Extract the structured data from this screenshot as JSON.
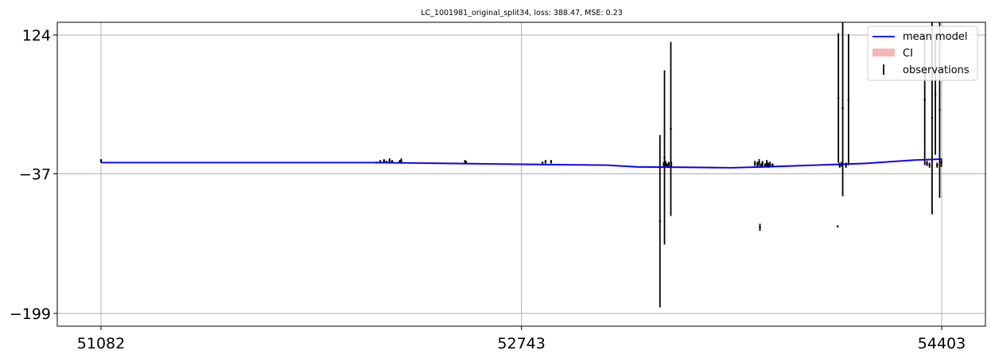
{
  "chart_data": {
    "type": "line",
    "title": "LC_1001981_original_split34, loss: 388.47, MSE: 0.23",
    "xlabel": "",
    "ylabel": "",
    "xlim": [
      51082,
      54403
    ],
    "ylim": [
      -199,
      124
    ],
    "x_ticks": [
      "51082",
      "52743",
      "54403"
    ],
    "y_ticks": [
      "124",
      "−37",
      "−199"
    ],
    "grid": true,
    "legend_position": "top-right",
    "legend": [
      "mean model",
      "CI",
      "observations"
    ],
    "colors": {
      "mean_model": "#0000ff",
      "ci": "#f7b6b6",
      "observations": "#000000",
      "grid": "#b0b0b0"
    },
    "mean_model": {
      "x": [
        51082,
        52167,
        52467,
        52767,
        53082,
        53200,
        53400,
        53570,
        53700,
        53800,
        53900,
        54000,
        54100,
        54200,
        54300,
        54403
      ],
      "y": [
        -24,
        -24,
        -25,
        -26,
        -27,
        -29,
        -29.5,
        -30,
        -29,
        -28,
        -27,
        -26,
        -25,
        -23,
        -21,
        -20
      ]
    },
    "observations": [
      {
        "x": 51082,
        "y": -22,
        "yerr": 2
      },
      {
        "x": 52170,
        "y": -24,
        "yerr": 1
      },
      {
        "x": 52185,
        "y": -23,
        "yerr": 2
      },
      {
        "x": 52200,
        "y": -22,
        "yerr": 2
      },
      {
        "x": 52210,
        "y": -23,
        "yerr": 1
      },
      {
        "x": 52222,
        "y": -22,
        "yerr": 3
      },
      {
        "x": 52232,
        "y": -23,
        "yerr": 2
      },
      {
        "x": 52262,
        "y": -23,
        "yerr": 2
      },
      {
        "x": 52268,
        "y": -22,
        "yerr": 3
      },
      {
        "x": 52520,
        "y": -23,
        "yerr": 2
      },
      {
        "x": 52524,
        "y": -24,
        "yerr": 2
      },
      {
        "x": 52826,
        "y": -24,
        "yerr": 1
      },
      {
        "x": 52838,
        "y": -23,
        "yerr": 2
      },
      {
        "x": 52860,
        "y": -23,
        "yerr": 2
      },
      {
        "x": 53290,
        "y": -92,
        "yerr": 100
      },
      {
        "x": 53305,
        "y": -26,
        "yerr": 3
      },
      {
        "x": 53312,
        "y": -25,
        "yerr": 3
      },
      {
        "x": 53318,
        "y": -27,
        "yerr": 2
      },
      {
        "x": 53325,
        "y": -26,
        "yerr": 3
      },
      {
        "x": 53308,
        "y": -18,
        "yerr": 101
      },
      {
        "x": 53333,
        "y": 15,
        "yerr": 101
      },
      {
        "x": 53335,
        "y": -26,
        "yerr": 3
      },
      {
        "x": 53665,
        "y": -25,
        "yerr": 3
      },
      {
        "x": 53675,
        "y": -26,
        "yerr": 3
      },
      {
        "x": 53682,
        "y": -24,
        "yerr": 4
      },
      {
        "x": 53690,
        "y": -27,
        "yerr": 2
      },
      {
        "x": 53695,
        "y": -25,
        "yerr": 3
      },
      {
        "x": 53705,
        "y": -27,
        "yerr": 2
      },
      {
        "x": 53712,
        "y": -25,
        "yerr": 4
      },
      {
        "x": 53718,
        "y": -27,
        "yerr": 3
      },
      {
        "x": 53725,
        "y": -26,
        "yerr": 3
      },
      {
        "x": 53735,
        "y": -27,
        "yerr": 2
      },
      {
        "x": 53685,
        "y": -99,
        "yerr": 4
      },
      {
        "x": 53992,
        "y": -98,
        "yerr": 1
      },
      {
        "x": 53995,
        "y": 51,
        "yerr": 75
      },
      {
        "x": 54000,
        "y": -27,
        "yerr": 3
      },
      {
        "x": 54008,
        "y": -26,
        "yerr": 3
      },
      {
        "x": 54012,
        "y": 39,
        "yerr": 102
      },
      {
        "x": 54025,
        "y": -27,
        "yerr": 3
      },
      {
        "x": 54035,
        "y": 49,
        "yerr": 76
      },
      {
        "x": 54336,
        "y": 49,
        "yerr": 76
      },
      {
        "x": 54345,
        "y": -25,
        "yerr": 3
      },
      {
        "x": 54355,
        "y": -27,
        "yerr": 3
      },
      {
        "x": 54365,
        "y": 28,
        "yerr": 112
      },
      {
        "x": 54378,
        "y": 55,
        "yerr": 70
      },
      {
        "x": 54385,
        "y": -27,
        "yerr": 3
      },
      {
        "x": 54395,
        "y": 37,
        "yerr": 102
      },
      {
        "x": 54402,
        "y": -24,
        "yerr": 5
      }
    ]
  }
}
